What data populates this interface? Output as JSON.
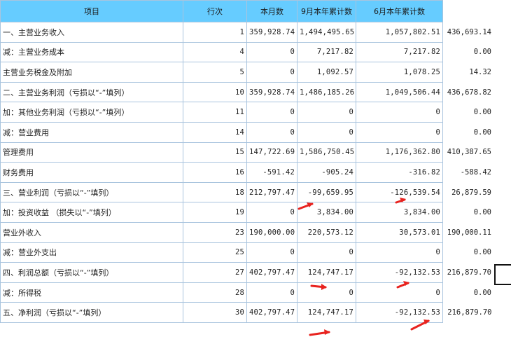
{
  "headers": [
    "项目",
    "行次",
    "本月数",
    "9月本年累计数",
    "6月本年累计数"
  ],
  "rows": [
    {
      "item": "一、主营业务收入",
      "line": "1",
      "month": "359,928.74",
      "sep": "1,494,495.65",
      "jun": "1,057,802.51",
      "extra": "436,693.14"
    },
    {
      "item": "减：主营业务成本",
      "line": "4",
      "month": "0",
      "sep": "7,217.82",
      "jun": "7,217.82",
      "extra": "0.00"
    },
    {
      "item": "主营业务税金及附加",
      "line": "5",
      "month": "0",
      "sep": "1,092.57",
      "jun": "1,078.25",
      "extra": "14.32"
    },
    {
      "item": "二、主营业务利润（亏损以“-”填列）",
      "line": "10",
      "month": "359,928.74",
      "sep": "1,486,185.26",
      "jun": "1,049,506.44",
      "extra": "436,678.82"
    },
    {
      "item": "加：其他业务利润（亏损以“-”填列）",
      "line": "11",
      "month": "0",
      "sep": "0",
      "jun": "0",
      "extra": "0.00"
    },
    {
      "item": "减：营业费用",
      "line": "14",
      "month": "0",
      "sep": "0",
      "jun": "0",
      "extra": "0.00"
    },
    {
      "item": "管理费用",
      "line": "15",
      "month": "147,722.69",
      "sep": "1,586,750.45",
      "jun": "1,176,362.80",
      "extra": "410,387.65"
    },
    {
      "item": "财务费用",
      "line": "16",
      "month": "-591.42",
      "sep": "-905.24",
      "jun": "-316.82",
      "extra": "-588.42"
    },
    {
      "item": "三、营业利润（亏损以“-”填列）",
      "line": "18",
      "month": "212,797.47",
      "sep": "-99,659.95",
      "jun": "-126,539.54",
      "extra": "26,879.59"
    },
    {
      "item": "加：投资收益 （损失以“-”填列）",
      "line": "19",
      "month": "0",
      "sep": "3,834.00",
      "jun": "3,834.00",
      "extra": "0.00"
    },
    {
      "item": "营业外收入",
      "line": "23",
      "month": "190,000.00",
      "sep": "220,573.12",
      "jun": "30,573.01",
      "extra": "190,000.11"
    },
    {
      "item": "减：营业外支出",
      "line": "25",
      "month": "0",
      "sep": "0",
      "jun": "0",
      "extra": "0.00"
    },
    {
      "item": "四、利润总额（亏损以“-”填列）",
      "line": "27",
      "month": "402,797.47",
      "sep": "124,747.17",
      "jun": "-92,132.53",
      "extra": "216,879.70"
    },
    {
      "item": "减：所得税",
      "line": "28",
      "month": "0",
      "sep": "0",
      "jun": "0",
      "extra": "0.00"
    },
    {
      "item": "五、净利润（亏损以“-”填列）",
      "line": "30",
      "month": "402,797.47",
      "sep": "124,747.17",
      "jun": "-92,132.53",
      "extra": "216,879.70"
    }
  ],
  "colors": {
    "header_bg": "#66ccff",
    "grid": "#a9c4de",
    "arrow": "#e8231f"
  }
}
